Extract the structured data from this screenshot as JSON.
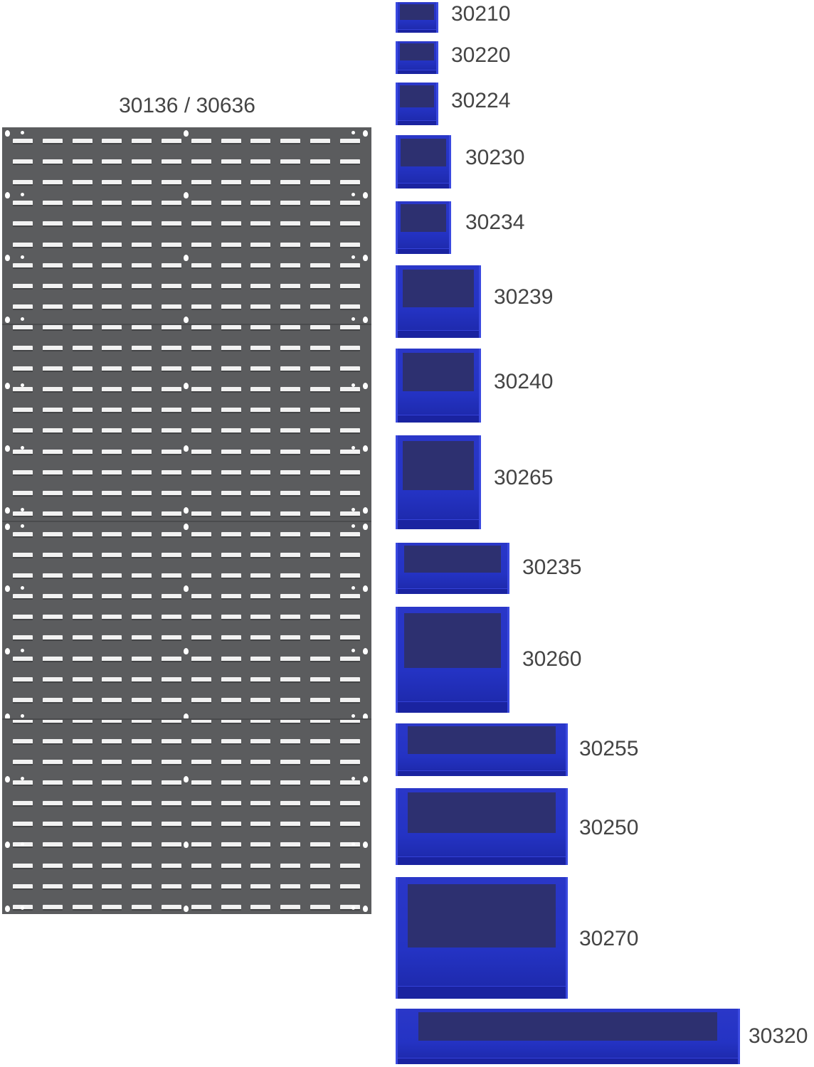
{
  "panel": {
    "label": "30136 / 30636",
    "color": "#5b5c5e"
  },
  "bins": [
    {
      "label": "30210"
    },
    {
      "label": "30220"
    },
    {
      "label": "30224"
    },
    {
      "label": "30230"
    },
    {
      "label": "30234"
    },
    {
      "label": "30239"
    },
    {
      "label": "30240"
    },
    {
      "label": "30265"
    },
    {
      "label": "30235"
    },
    {
      "label": "30260"
    },
    {
      "label": "30255"
    },
    {
      "label": "30250"
    },
    {
      "label": "30270"
    },
    {
      "label": "30320"
    }
  ],
  "bin_color": "#2433c4"
}
